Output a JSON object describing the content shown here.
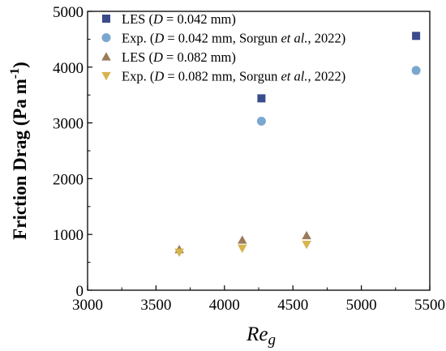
{
  "chart_data": {
    "type": "scatter",
    "xlabel": "Reg",
    "ylabel": "Friction Drag (Pa m⁻¹)",
    "xlim": [
      3000,
      5500
    ],
    "ylim": [
      0,
      5000
    ],
    "x_ticks": [
      "3000",
      "3500",
      "4000",
      "4500",
      "5000",
      "5500"
    ],
    "y_ticks": [
      "0",
      "1000",
      "2000",
      "3000",
      "4000",
      "5000"
    ],
    "legend_position": "top-left",
    "series": [
      {
        "name": "LES (D = 0.042 mm)",
        "marker": "square",
        "color": "#3b4c8c",
        "points": [
          [
            4270,
            3440
          ],
          [
            5400,
            4560
          ]
        ]
      },
      {
        "name": "Exp. (D = 0.042 mm, Sorgun et al., 2022)",
        "marker": "circle",
        "color": "#7aa7cf",
        "points": [
          [
            4270,
            3030
          ],
          [
            5400,
            3940
          ]
        ]
      },
      {
        "name": "LES (D = 0.082 mm)",
        "marker": "triangle-up",
        "color": "#9a7b5a",
        "points": [
          [
            3670,
            730
          ],
          [
            4130,
            900
          ],
          [
            4600,
            980
          ]
        ]
      },
      {
        "name": "Exp. (D = 0.082 mm, Sorgun et al., 2022)",
        "marker": "triangle-down",
        "color": "#d6b44e",
        "points": [
          [
            3670,
            680
          ],
          [
            4130,
            750
          ],
          [
            4600,
            820
          ]
        ]
      }
    ],
    "legend_labels": [
      {
        "prefix": "LES (",
        "var": "D",
        "mid": " = 0.042 mm)",
        "ital": "",
        "suffix": ""
      },
      {
        "prefix": "Exp. (",
        "var": "D",
        "mid": " = 0.042 mm, Sorgun ",
        "ital": "et al.",
        "suffix": ", 2022)"
      },
      {
        "prefix": "LES (",
        "var": "D",
        "mid": " = 0.082 mm)",
        "ital": "",
        "suffix": ""
      },
      {
        "prefix": "Exp. (",
        "var": "D",
        "mid": " = 0.082 mm, Sorgun ",
        "ital": "et al.",
        "suffix": ", 2022)"
      }
    ],
    "xlabel_parts": {
      "main": "Re",
      "sub": "g"
    },
    "ylabel_parts": {
      "main": "Friction Drag (Pa m",
      "sup": "-1",
      "tail": ")"
    }
  }
}
